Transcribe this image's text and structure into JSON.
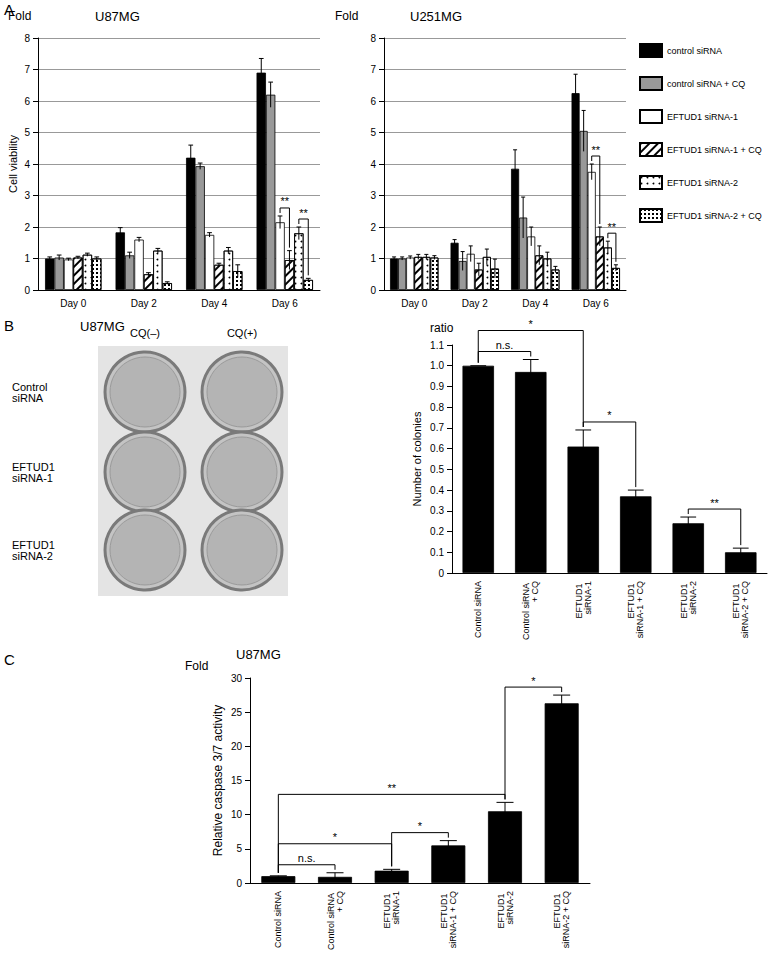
{
  "panel_labels": [
    "A",
    "B",
    "C"
  ],
  "plates": {
    "title": "U87MG",
    "columns": [
      "CQ(–)",
      "CQ(+)"
    ],
    "rows": [
      "Control siRNA",
      "EFTUD1 siRNA-1",
      "EFTUD1 siRNA-2"
    ]
  },
  "chart_data": [
    {
      "type": "bar",
      "title": "U87MG",
      "ylabel_top": "Fold",
      "ylabel": "Cell viability",
      "categories": [
        "Day 0",
        "Day 2",
        "Day 4",
        "Day 6"
      ],
      "series": [
        {
          "name": "control siRNA",
          "color": "#000000",
          "values": [
            1.0,
            1.83,
            4.2,
            6.9
          ],
          "errors": [
            0.05,
            0.15,
            0.4,
            0.45
          ]
        },
        {
          "name": "control siRNA + CQ",
          "color": "#999999",
          "values": [
            1.03,
            1.1,
            3.93,
            6.2
          ],
          "errors": [
            0.08,
            0.1,
            0.1,
            0.4
          ]
        },
        {
          "name": "EFTUD1 siRNA-1",
          "color": "#ffffff",
          "values": [
            0.97,
            1.6,
            1.75,
            2.15
          ],
          "errors": [
            0.04,
            0.07,
            0.07,
            0.2
          ]
        },
        {
          "name": "EFTUD1 siRNA-1 + CQ",
          "color": "#ffffff",
          "values": [
            1.03,
            0.5,
            0.8,
            0.95
          ],
          "errors": [
            0.04,
            0.05,
            0.05,
            0.3
          ]
        },
        {
          "name": "EFTUD1 siRNA-2",
          "color": "#ffffff",
          "values": [
            1.12,
            1.25,
            1.25,
            1.8
          ],
          "errors": [
            0.05,
            0.07,
            0.1,
            0.2
          ]
        },
        {
          "name": "EFTUD1 siRNA-2 + CQ",
          "color": "#ffffff",
          "values": [
            1.0,
            0.22,
            0.6,
            0.32
          ],
          "errors": [
            0.05,
            0.04,
            0.2,
            0.05
          ]
        }
      ],
      "ylim": [
        0,
        8
      ],
      "yticks": [
        0,
        1,
        2,
        3,
        4,
        5,
        6,
        7,
        8
      ],
      "grid": true,
      "significance": [
        {
          "category": "Day 6",
          "series": [
            "EFTUD1 siRNA-1",
            "EFTUD1 siRNA-1 + CQ"
          ],
          "label": "**"
        },
        {
          "category": "Day 6",
          "series": [
            "EFTUD1 siRNA-2",
            "EFTUD1 siRNA-2 + CQ"
          ],
          "label": "**"
        }
      ]
    },
    {
      "type": "bar",
      "title": "U251MG",
      "ylabel_top": "Fold",
      "categories": [
        "Day 0",
        "Day 2",
        "Day 4",
        "Day 6"
      ],
      "series": [
        {
          "name": "control siRNA",
          "color": "#000000",
          "values": [
            1.0,
            1.5,
            3.85,
            6.25
          ],
          "errors": [
            0.05,
            0.1,
            0.6,
            0.6
          ]
        },
        {
          "name": "control siRNA + CQ",
          "color": "#999999",
          "values": [
            1.0,
            0.92,
            2.3,
            5.05
          ],
          "errors": [
            0.05,
            0.3,
            0.65,
            0.65
          ]
        },
        {
          "name": "EFTUD1 siRNA-1",
          "color": "#ffffff",
          "values": [
            1.03,
            1.15,
            1.7,
            3.75
          ],
          "errors": [
            0.05,
            0.25,
            0.3,
            0.25
          ]
        },
        {
          "name": "EFTUD1 siRNA-1 + CQ",
          "color": "#ffffff",
          "values": [
            1.05,
            0.65,
            1.1,
            1.7
          ],
          "errors": [
            0.08,
            0.2,
            0.3,
            0.3
          ]
        },
        {
          "name": "EFTUD1 siRNA-2",
          "color": "#ffffff",
          "values": [
            1.05,
            1.05,
            1.0,
            1.35
          ],
          "errors": [
            0.08,
            0.25,
            0.2,
            0.2
          ]
        },
        {
          "name": "EFTUD1 siRNA-2 + CQ",
          "color": "#ffffff",
          "values": [
            1.03,
            0.68,
            0.65,
            0.7
          ],
          "errors": [
            0.06,
            0.3,
            0.1,
            0.1
          ]
        }
      ],
      "ylim": [
        0,
        8
      ],
      "yticks": [
        0,
        1,
        2,
        3,
        4,
        5,
        6,
        7,
        8
      ],
      "grid": true,
      "legend": "right",
      "significance": [
        {
          "category": "Day 6",
          "series": [
            "EFTUD1 siRNA-1",
            "EFTUD1 siRNA-1 + CQ"
          ],
          "label": "**"
        },
        {
          "category": "Day 6",
          "series": [
            "EFTUD1 siRNA-2",
            "EFTUD1 siRNA-2 + CQ"
          ],
          "label": "**"
        }
      ]
    },
    {
      "type": "bar",
      "ylabel_top": "ratio",
      "ylabel": "Number of colonies",
      "categories": [
        "Control siRNA",
        "Control siRNA + CQ",
        "EFTUD1 siRNA-1",
        "EFTUD1 siRNA-1 + CQ",
        "EFTUD1 siRNA-2",
        "EFTUD1 siRNA-2 + CQ"
      ],
      "values": [
        1.0,
        0.97,
        0.61,
        0.37,
        0.24,
        0.1
      ],
      "errors": [
        0,
        0.06,
        0.08,
        0.03,
        0.03,
        0.02
      ],
      "color": "#000000",
      "ylim": [
        0,
        1.1
      ],
      "yticks": [
        0,
        0.1,
        0.2,
        0.3,
        0.4,
        0.5,
        0.6,
        0.7,
        0.8,
        0.9,
        {
          "value": 1,
          "label": "1.0"
        },
        1.1
      ],
      "grid": false,
      "significance": [
        {
          "categories": [
            "Control siRNA",
            "Control siRNA + CQ"
          ],
          "label": "n.s."
        },
        {
          "categories": [
            "Control siRNA",
            "EFTUD1 siRNA-1"
          ],
          "label": "*"
        },
        {
          "categories": [
            "EFTUD1 siRNA-1",
            "EFTUD1 siRNA-1 + CQ"
          ],
          "label": "*"
        },
        {
          "categories": [
            "EFTUD1 siRNA-2",
            "EFTUD1 siRNA-2 + CQ"
          ],
          "label": "**"
        }
      ]
    },
    {
      "type": "bar",
      "title": "U87MG",
      "ylabel_top": "Fold",
      "ylabel": "Relative caspase 3/7 activity",
      "categories": [
        "Control siRNA",
        "Control siRNA + CQ",
        "EFTUD1 siRNA-1",
        "EFTUD1 siRNA-1 + CQ",
        "EFTUD1 siRNA-2",
        "EFTUD1 siRNA-2 + CQ"
      ],
      "values": [
        1.0,
        0.9,
        1.8,
        5.5,
        10.5,
        26.3
      ],
      "errors": [
        0.05,
        0.6,
        0.2,
        0.7,
        1.3,
        1.2
      ],
      "color": "#000000",
      "ylim": [
        0,
        30
      ],
      "yticks": [
        0,
        5,
        10,
        15,
        20,
        25,
        30
      ],
      "grid": false,
      "significance": [
        {
          "categories": [
            "Control siRNA",
            "Control siRNA + CQ"
          ],
          "label": "n.s."
        },
        {
          "categories": [
            "Control siRNA",
            "EFTUD1 siRNA-1"
          ],
          "label": "*"
        },
        {
          "categories": [
            "Control siRNA",
            "EFTUD1 siRNA-2"
          ],
          "label": "**"
        },
        {
          "categories": [
            "EFTUD1 siRNA-1",
            "EFTUD1 siRNA-1 + CQ"
          ],
          "label": "*"
        },
        {
          "categories": [
            "EFTUD1 siRNA-2",
            "EFTUD1 siRNA-2 + CQ"
          ],
          "label": "*"
        }
      ]
    }
  ]
}
